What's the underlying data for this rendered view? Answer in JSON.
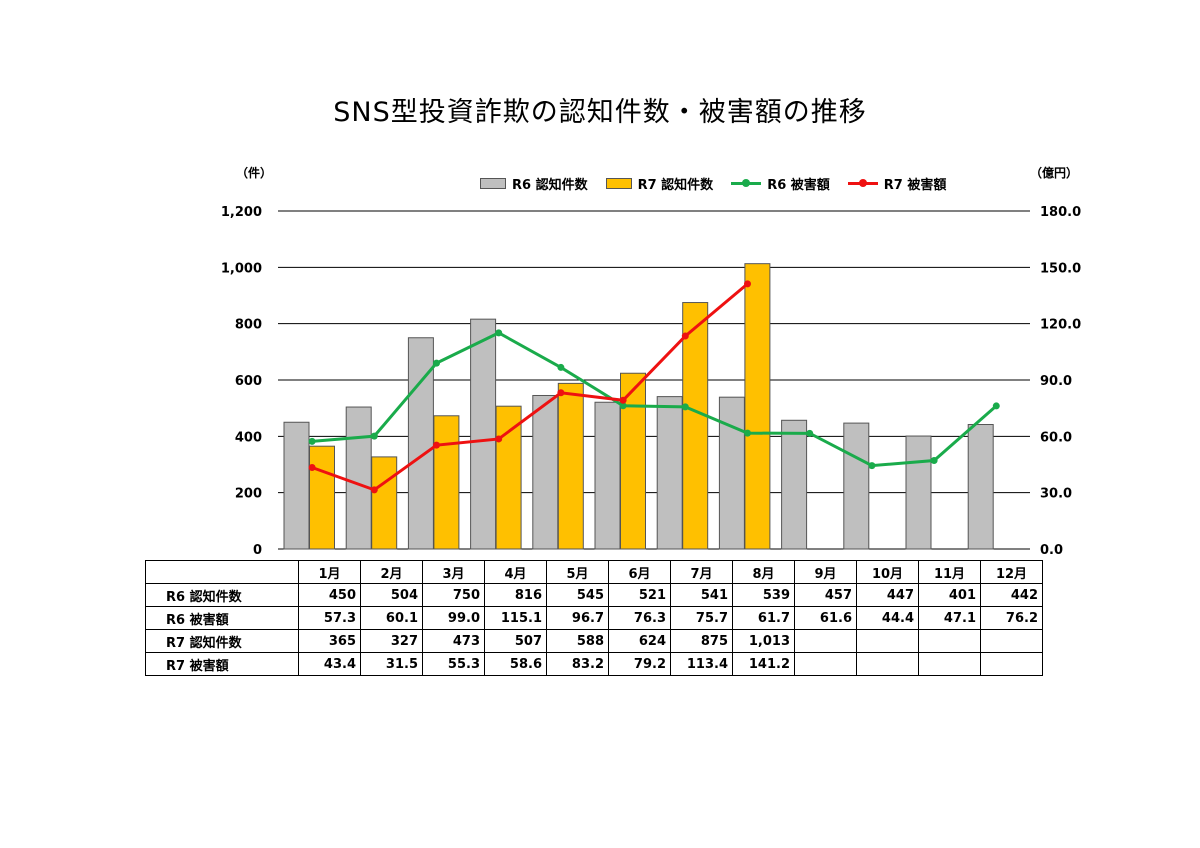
{
  "title": "SNS型投資詐欺の認知件数・被害額の推移",
  "left_unit": "（件）",
  "right_unit": "（億円）",
  "chart_data": {
    "type": "bar",
    "title": "SNS型投資詐欺の認知件数・被害額の推移",
    "categories": [
      "1月",
      "2月",
      "3月",
      "4月",
      "5月",
      "6月",
      "7月",
      "8月",
      "9月",
      "10月",
      "11月",
      "12月"
    ],
    "left_axis": {
      "label": "（件）",
      "ylim": [
        0,
        1200
      ],
      "ticks": [
        "0",
        "200",
        "400",
        "600",
        "800",
        "1,000",
        "1,200"
      ]
    },
    "right_axis": {
      "label": "（億円）",
      "ylim": [
        0,
        180
      ],
      "ticks": [
        "0.0",
        "30.0",
        "60.0",
        "90.0",
        "120.0",
        "150.0",
        "180.0"
      ]
    },
    "grid": true,
    "legend_position": "top-right",
    "series": [
      {
        "name": "R6 認知件数",
        "kind": "bar",
        "axis": "left",
        "color": "#bfbfbf",
        "values": [
          450,
          504,
          750,
          816,
          545,
          521,
          541,
          539,
          457,
          447,
          401,
          442
        ],
        "display": [
          "450",
          "504",
          "750",
          "816",
          "545",
          "521",
          "541",
          "539",
          "457",
          "447",
          "401",
          "442"
        ]
      },
      {
        "name": "R6 被害額",
        "kind": "line",
        "axis": "right",
        "color": "#1aab4b",
        "values": [
          57.3,
          60.1,
          99.0,
          115.1,
          96.7,
          76.3,
          75.7,
          61.7,
          61.6,
          44.4,
          47.1,
          76.2
        ],
        "display": [
          "57.3",
          "60.1",
          "99.0",
          "115.1",
          "96.7",
          "76.3",
          "75.7",
          "61.7",
          "61.6",
          "44.4",
          "47.1",
          "76.2"
        ]
      },
      {
        "name": "R7 認知件数",
        "kind": "bar",
        "axis": "left",
        "color": "#ffc000",
        "values": [
          365,
          327,
          473,
          507,
          588,
          624,
          875,
          1013,
          null,
          null,
          null,
          null
        ],
        "display": [
          "365",
          "327",
          "473",
          "507",
          "588",
          "624",
          "875",
          "1,013",
          "",
          "",
          "",
          ""
        ]
      },
      {
        "name": "R7 被害額",
        "kind": "line",
        "axis": "right",
        "color": "#ee1111",
        "values": [
          43.4,
          31.5,
          55.3,
          58.6,
          83.2,
          79.2,
          113.4,
          141.2,
          null,
          null,
          null,
          null
        ],
        "display": [
          "43.4",
          "31.5",
          "55.3",
          "58.6",
          "83.2",
          "79.2",
          "113.4",
          "141.2",
          "",
          "",
          "",
          ""
        ]
      }
    ],
    "legend_order": [
      0,
      2,
      1,
      3
    ]
  }
}
